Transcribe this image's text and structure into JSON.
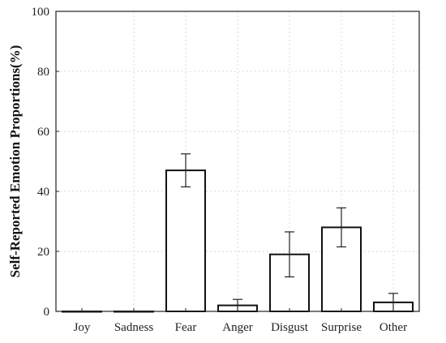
{
  "chart_data": {
    "type": "bar",
    "title": "",
    "xlabel": "",
    "ylabel": "Self-Reported Emotion Proportions(%)",
    "ylim": [
      0,
      100
    ],
    "yticks": [
      0,
      20,
      40,
      60,
      80,
      100
    ],
    "categories": [
      "Joy",
      "Sadness",
      "Fear",
      "Anger",
      "Disgust",
      "Surprise",
      "Other"
    ],
    "values": [
      0,
      0,
      47,
      2,
      19,
      28,
      3
    ],
    "error_low": [
      0,
      0,
      41.5,
      0,
      11.5,
      21.5,
      0
    ],
    "error_high": [
      0,
      0,
      52.5,
      4,
      26.5,
      34.5,
      6
    ],
    "grid": true,
    "colors": {
      "bar_fill": "#ffffff",
      "bar_edge": "#111111",
      "grid": "#cfcfcf"
    }
  }
}
